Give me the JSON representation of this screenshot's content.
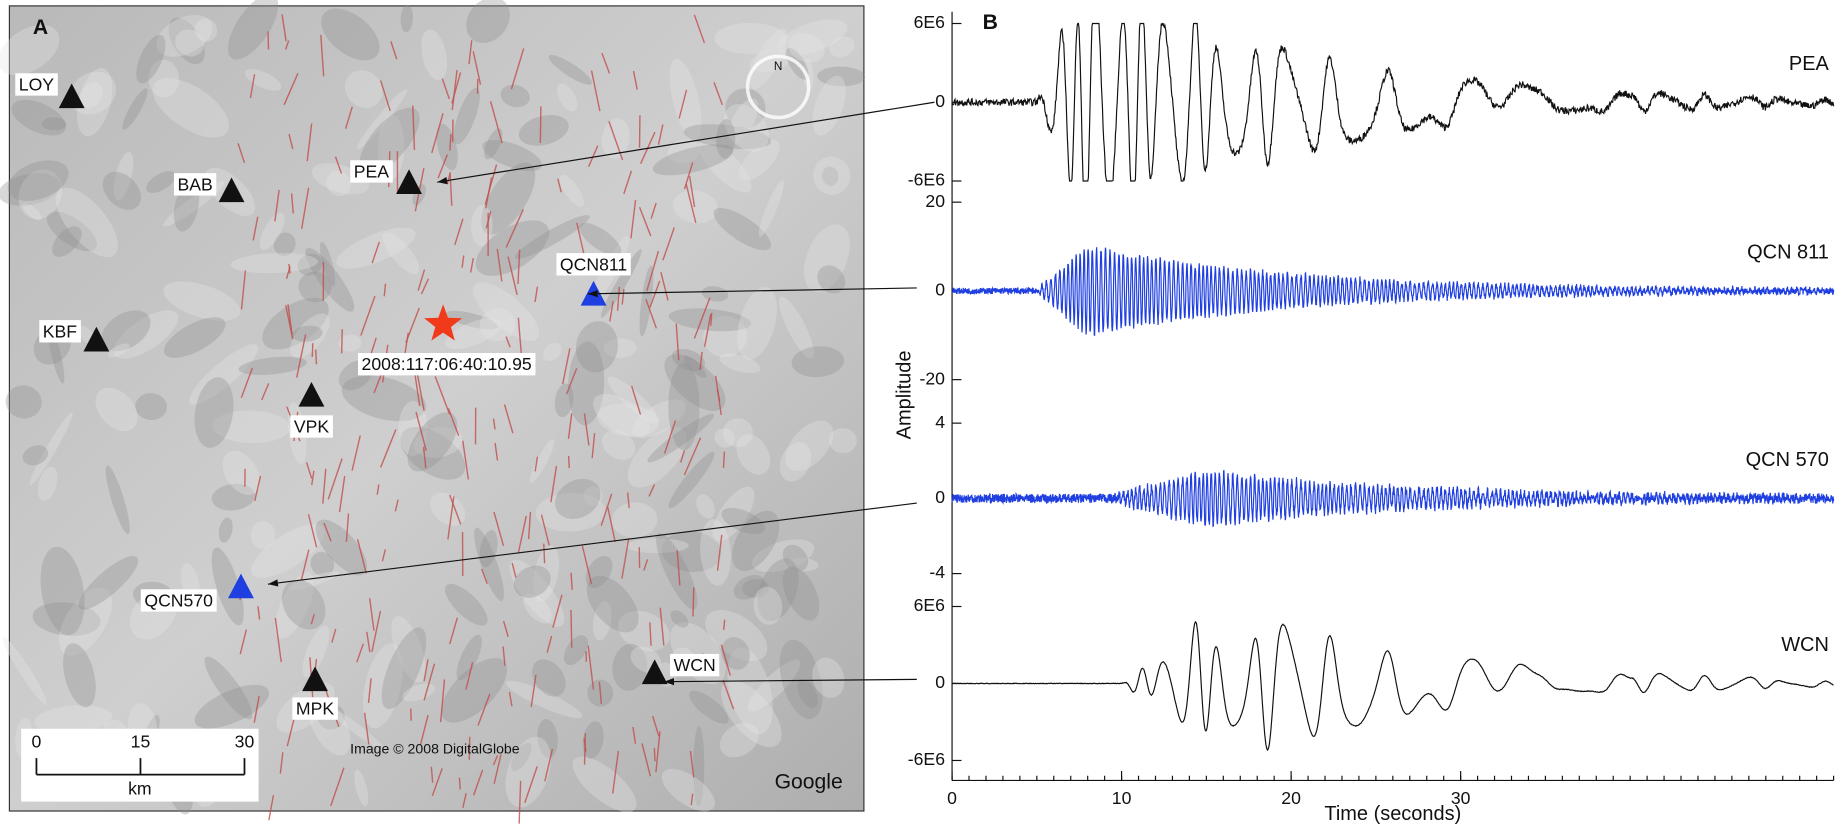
{
  "panels": {
    "a": "A",
    "b": "B"
  },
  "map": {
    "stations": [
      {
        "label": "LOY",
        "color": "#111111"
      },
      {
        "label": "BAB",
        "color": "#111111"
      },
      {
        "label": "PEA",
        "color": "#111111"
      },
      {
        "label": "QCN811",
        "color": "#1f3fe0"
      },
      {
        "label": "KBF",
        "color": "#111111"
      },
      {
        "label": "VPK",
        "color": "#111111"
      },
      {
        "label": "QCN570",
        "color": "#1f3fe0"
      },
      {
        "label": "MPK",
        "color": "#111111"
      },
      {
        "label": "WCN",
        "color": "#111111"
      }
    ],
    "event_label": "2008:117:06:40:10.95",
    "event_color": "#f03a1a",
    "compass": "N",
    "credit": "Image © 2008 DigitalGlobe",
    "logo": "Google",
    "scale_bar": {
      "ticks": [
        0,
        15,
        30
      ],
      "unit": "km"
    }
  },
  "seismograms": {
    "y_label": "Amplitude",
    "x_label": "Time (seconds)",
    "xlim": [
      0,
      52
    ],
    "xticks": [
      0,
      10,
      20,
      30
    ],
    "traces": [
      {
        "name": "PEA",
        "color": "#111111",
        "ylim": [
          -6000000,
          6000000
        ],
        "yticks": [
          {
            "value": 6000000,
            "label": "6E6"
          },
          0,
          {
            "value": -6000000,
            "label": "-6E6"
          }
        ]
      },
      {
        "name": "QCN 811",
        "color": "#1f3fe0",
        "ylim": [
          -20,
          20
        ],
        "yticks": [
          20,
          0,
          -20
        ]
      },
      {
        "name": "QCN 570",
        "color": "#1f3fe0",
        "ylim": [
          -4,
          4
        ],
        "yticks": [
          4,
          0,
          -4
        ]
      },
      {
        "name": "WCN",
        "color": "#111111",
        "ylim": [
          -6000000,
          6000000
        ],
        "yticks": [
          {
            "value": 6000000,
            "label": "6E6"
          },
          0,
          {
            "value": -6000000,
            "label": "-6E6"
          }
        ]
      }
    ]
  }
}
